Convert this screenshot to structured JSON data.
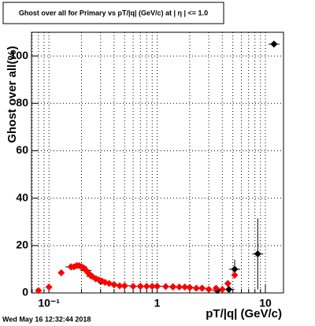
{
  "chart_data": {
    "type": "scatter",
    "title": "Ghost over all for Primary vs pT/|q| (GeV/c) at | η | <= 1.0",
    "x_label": "pT/|q| (GeV/c)",
    "y_label": "Ghost over all(%)",
    "footer": "Wed May 16 12:32:44 2018",
    "xlog": true,
    "grid": true,
    "xlim": [
      0.069,
      14.7
    ],
    "ylim": [
      0,
      110
    ],
    "xticks": [
      {
        "value": 0.1,
        "label": "10⁻¹"
      },
      1,
      10
    ],
    "xminorticks": [
      0.07,
      0.08,
      0.09,
      0.2,
      0.3,
      0.4,
      0.5,
      0.6,
      0.7,
      0.8,
      0.9,
      2,
      3,
      4,
      5,
      6,
      7,
      8,
      9
    ],
    "yticks": [
      0,
      20,
      40,
      60,
      80,
      100
    ],
    "series": [
      {
        "color": "#000000",
        "x": [
          0.16,
          0.18,
          0.2,
          0.22,
          0.25,
          0.3,
          0.4,
          0.5,
          0.7,
          1.0,
          1.4,
          2.0,
          2.6,
          3.6,
          4.6,
          5.2,
          8.5,
          12
        ],
        "values": [
          11,
          11.5,
          11,
          9.5,
          7,
          5,
          3.5,
          3,
          2.8,
          2.8,
          2.6,
          2.3,
          2,
          1,
          1.5,
          10,
          16.5,
          105
        ],
        "errors": [
          0.5,
          0.5,
          0.5,
          0.5,
          0.5,
          0.4,
          0.3,
          0.3,
          0.3,
          0.3,
          0.4,
          0.5,
          0.6,
          1,
          1.5,
          4,
          15,
          0
        ]
      },
      {
        "color": "#ff0000",
        "x": [
          0.08,
          0.1,
          0.13,
          0.16,
          0.17,
          0.18,
          0.19,
          0.2,
          0.21,
          0.22,
          0.23,
          0.24,
          0.25,
          0.27,
          0.29,
          0.31,
          0.33,
          0.36,
          0.4,
          0.45,
          0.5,
          0.6,
          0.7,
          0.8,
          0.9,
          1.0,
          1.2,
          1.4,
          1.6,
          1.8,
          2.0,
          2.3,
          2.6,
          3.0,
          3.5,
          4.0,
          4.5,
          5.2
        ],
        "values": [
          1,
          2.5,
          8.5,
          11,
          11,
          11.5,
          11.5,
          11,
          10.5,
          9.5,
          8.5,
          7.5,
          7,
          6,
          5.5,
          5,
          4.5,
          4,
          3.5,
          3,
          3,
          2.8,
          2.8,
          2.8,
          2.8,
          2.8,
          2.7,
          2.5,
          2.5,
          2.5,
          2.3,
          2,
          2,
          1.5,
          2,
          1.5,
          4,
          7.5
        ]
      }
    ]
  }
}
